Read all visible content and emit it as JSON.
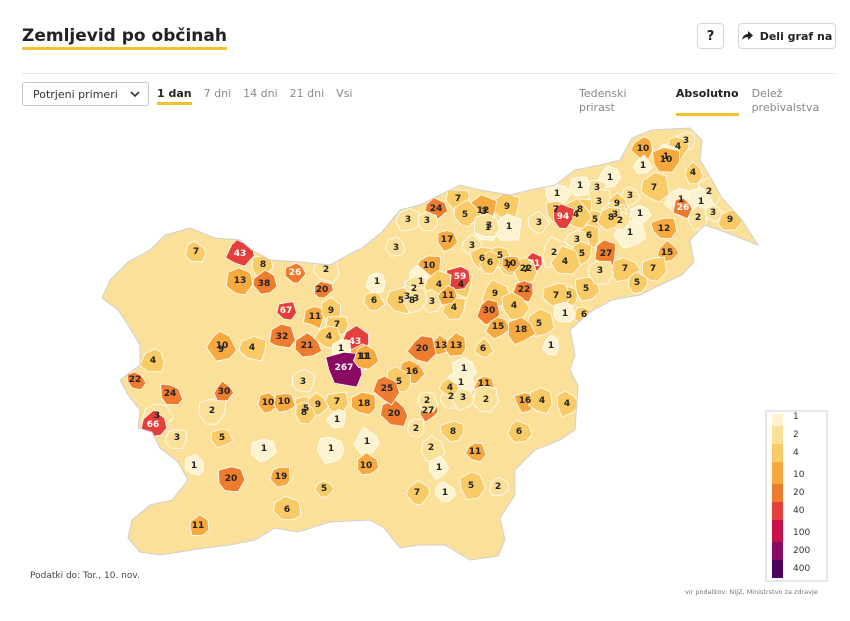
{
  "header": {
    "title": "Zemljevid po občinah",
    "help_label": "?",
    "share_label": "Deli graf na"
  },
  "controls": {
    "metric_select": {
      "value": "Potrjeni primeri"
    },
    "period_tabs": [
      {
        "label": "1 dan",
        "active": true
      },
      {
        "label": "7 dni",
        "active": false
      },
      {
        "label": "14 dni",
        "active": false
      },
      {
        "label": "21 dni",
        "active": false
      },
      {
        "label": "Vsi",
        "active": false
      }
    ],
    "mode_tabs": [
      {
        "label": "Tedenski prirast",
        "active": false
      },
      {
        "label": "Absolutno",
        "active": true
      },
      {
        "label": "Delež prebivalstva",
        "active": false
      }
    ]
  },
  "map": {
    "legend": {
      "labels": [
        "1",
        "2",
        "4",
        "10",
        "20",
        "40",
        "100",
        "200",
        "400"
      ],
      "colors": [
        "#fdf3d0",
        "#fbe09a",
        "#f8cb67",
        "#f5a93f",
        "#ee7c2e",
        "#e43f3a",
        "#c8104a",
        "#8a0a63",
        "#4a0360"
      ]
    },
    "region_values": [
      "10",
      "3",
      "4",
      "1",
      "10",
      "7",
      "1",
      "4",
      "1",
      "1",
      "3",
      "2",
      "1",
      "3",
      "7",
      "3",
      "9",
      "1",
      "8",
      "1",
      "3",
      "1",
      "26",
      "5",
      "3",
      "9",
      "2",
      "3",
      "1",
      "12",
      "3",
      "9",
      "4",
      "2",
      "1",
      "6",
      "15",
      "94",
      "7",
      "2",
      "3",
      "7",
      "24",
      "12",
      "8",
      "3",
      "3",
      "5",
      "17",
      "5",
      "7",
      "3",
      "4",
      "1",
      "3",
      "27",
      "71",
      "4",
      "7",
      "10",
      "3",
      "43",
      "7",
      "8",
      "5",
      "6",
      "13",
      "38",
      "26",
      "2",
      "59",
      "6",
      "22",
      "7",
      "10",
      "20",
      "1",
      "2",
      "5",
      "3",
      "4",
      "5",
      "5",
      "3",
      "1",
      "3",
      "4",
      "22",
      "11",
      "9",
      "30",
      "67",
      "11",
      "9",
      "6",
      "8",
      "7",
      "4",
      "5",
      "1",
      "43",
      "32",
      "21",
      "11",
      "7",
      "15",
      "18",
      "5",
      "6",
      "1",
      "4",
      "13",
      "13",
      "20",
      "6",
      "1",
      "22",
      "4",
      "9",
      "4",
      "10",
      "3",
      "267",
      "11",
      "16",
      "5",
      "1",
      "11",
      "24",
      "30",
      "10",
      "5",
      "3",
      "16",
      "4",
      "1",
      "4",
      "7",
      "10",
      "9",
      "18",
      "2",
      "20",
      "27",
      "25",
      "2",
      "3",
      "2",
      "4",
      "2",
      "6",
      "5",
      "8",
      "1",
      "2",
      "3",
      "1",
      "1",
      "3",
      "66",
      "11",
      "8",
      "1",
      "1",
      "2",
      "5",
      "1",
      "5",
      "10",
      "7",
      "1",
      "20",
      "2",
      "19",
      "6",
      "11"
    ],
    "regions_with_white_label": [
      "94",
      "71",
      "59",
      "67",
      "43",
      "267",
      "66",
      "26"
    ]
  },
  "footer": {
    "data_date": "Podatki do: Tor., 10. nov.",
    "source": "vir podatkov: NIJZ, Ministrstvo za zdravje"
  }
}
